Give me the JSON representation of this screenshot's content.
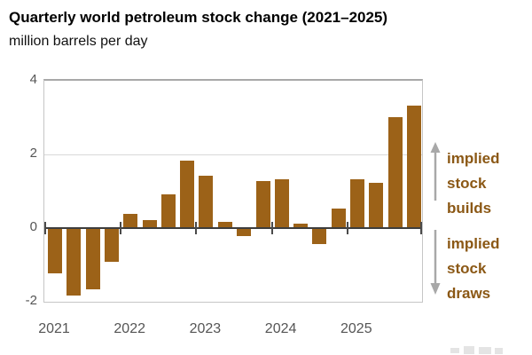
{
  "header": {
    "title": "Quarterly world petroleum stock change (2021–2025)",
    "subtitle": "million barrels per day"
  },
  "right_labels": {
    "builds": {
      "line1": "implied",
      "line2": "stock builds"
    },
    "draws": {
      "line1": "implied",
      "line2": "stock draws"
    }
  },
  "colors": {
    "bar": "#9c6218",
    "annotation_text": "#8b5815",
    "arrow": "#a8a8a8",
    "axis_text": "#555555",
    "zero_line": "#3d3d3d",
    "gridline": "#d9d9d9",
    "plot_border": "#c6c6c6"
  },
  "chart_data": {
    "type": "bar",
    "title": "Quarterly world petroleum stock change (2021–2025)",
    "ylabel": "million barrels per day",
    "xlabel": "",
    "ylim": [
      -2,
      4
    ],
    "yticks": [
      4,
      2,
      0,
      -2
    ],
    "gridline_values": [
      2
    ],
    "grid": "horizontal-partial",
    "legend_position": "none",
    "x_year_labels": [
      "2021",
      "2022",
      "2023",
      "2024",
      "2025"
    ],
    "categories": [
      "2021 Q1",
      "2021 Q2",
      "2021 Q3",
      "2021 Q4",
      "2022 Q1",
      "2022 Q2",
      "2022 Q3",
      "2022 Q4",
      "2023 Q1",
      "2023 Q2",
      "2023 Q3",
      "2023 Q4",
      "2024 Q1",
      "2024 Q2",
      "2024 Q3",
      "2024 Q4",
      "2025 Q1",
      "2025 Q2",
      "2025 Q3",
      "2025 Q4"
    ],
    "values": [
      -1.2,
      -1.8,
      -1.65,
      -0.9,
      0.35,
      0.2,
      0.9,
      1.8,
      1.4,
      0.15,
      -0.2,
      1.25,
      1.3,
      0.1,
      -0.4,
      0.5,
      1.3,
      1.2,
      3.0,
      3.3
    ],
    "positive_meaning": "implied stock builds",
    "negative_meaning": "implied stock draws"
  }
}
